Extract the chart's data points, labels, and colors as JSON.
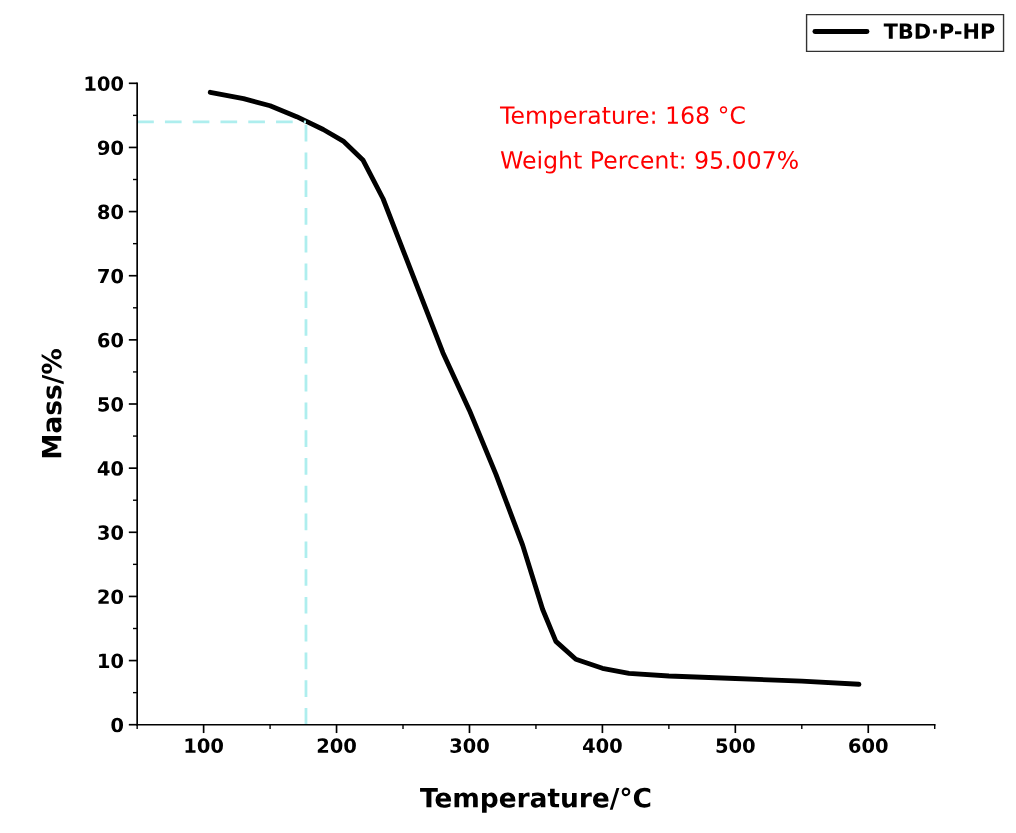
{
  "chart_data": {
    "type": "line",
    "xlabel": "Temperature/°C",
    "ylabel": "Mass/%",
    "x": [
      105,
      130,
      150,
      170,
      190,
      205,
      220,
      235,
      250,
      265,
      280,
      300,
      320,
      340,
      355,
      365,
      380,
      400,
      420,
      450,
      500,
      550,
      593
    ],
    "series": [
      {
        "name": "TBD·P-HP",
        "color": "#000000",
        "values": [
          98.6,
          97.6,
          96.5,
          94.8,
          92.8,
          91.0,
          88,
          82,
          74,
          66,
          58,
          49,
          39,
          28,
          18,
          13,
          10.2,
          8.8,
          8.0,
          7.6,
          7.2,
          6.8,
          6.3
        ]
      }
    ],
    "xlim": [
      50,
      650
    ],
    "xticks": [
      100,
      200,
      300,
      400,
      500,
      600
    ],
    "ylim": [
      0,
      100
    ],
    "yticks": [
      0,
      10,
      20,
      30,
      40,
      50,
      60,
      70,
      80,
      90,
      100
    ],
    "ref_lines": [
      {
        "axis": "x",
        "value": 177,
        "color": "#aeeeee",
        "line_style": "dashed"
      },
      {
        "axis": "y",
        "value": 94,
        "color": "#aeeeee",
        "line_style": "dashed"
      }
    ],
    "annotations": [
      "Temperature: 168 °C",
      "Weight Percent: 95.007%"
    ],
    "legend": "top right",
    "grid": false,
    "marker": "none",
    "line_style": "solid"
  }
}
